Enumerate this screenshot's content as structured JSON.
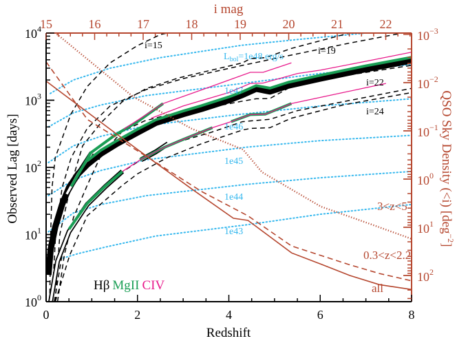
{
  "chart_data": {
    "type": "line",
    "xlabel": "Redshift",
    "ylabel": "Observed Lag [days]",
    "top_xlabel": "i mag",
    "right_ylabel": {
      "main": "QSO Sky Density (<i) [deg",
      "sup": "−2",
      "end": "]"
    },
    "xlim": [
      0,
      8
    ],
    "ylim": [
      1,
      10000
    ],
    "y_scale": "log",
    "top_xlim": [
      15,
      22.53
    ],
    "right_ylim": [
      0.001,
      350
    ],
    "right_y_scale": "log (inverted, increasing downward)",
    "grid": false,
    "x_ticks": [
      "0",
      "2",
      "4",
      "6",
      "8"
    ],
    "top_x_ticks": [
      "15",
      "16",
      "17",
      "18",
      "19",
      "20",
      "21",
      "22"
    ],
    "y_ticks": [
      {
        "base": "10",
        "exp": "0"
      },
      {
        "base": "10",
        "exp": "1"
      },
      {
        "base": "10",
        "exp": "2"
      },
      {
        "base": "10",
        "exp": "3"
      },
      {
        "base": "10",
        "exp": "4"
      }
    ],
    "right_y_ticks": [
      {
        "base": "10",
        "exp": "−3"
      },
      {
        "base": "10",
        "exp": "−2"
      },
      {
        "base": "10",
        "exp": "−1"
      },
      {
        "base": "10",
        "exp": "0"
      },
      {
        "base": "10",
        "exp": "1"
      },
      {
        "base": "10",
        "exp": "2"
      }
    ],
    "colors": {
      "black": "#000000",
      "mgii": "#1a9e55",
      "civ": "#e8198b",
      "lbol": "#35b8ee",
      "density": "#b5462e"
    },
    "legend": [
      {
        "label": "Hβ",
        "color": "#000000"
      },
      {
        "label": "MgII",
        "color": "#1a9e55"
      },
      {
        "label": "CIV",
        "color": "#e8198b"
      }
    ],
    "lbol_label": {
      "prefix": "L",
      "sub": "bol",
      "eq": "=",
      "suffix": " erg/s"
    },
    "lbol_lines": [
      {
        "name": "1e48",
        "points": [
          [
            0.09,
            1260
          ],
          [
            0.6,
            2000
          ],
          [
            1.4,
            3000
          ],
          [
            2.5,
            4300
          ],
          [
            4.3,
            6600
          ],
          [
            5.5,
            8000
          ],
          [
            7.0,
            10000
          ],
          [
            8.0,
            11500
          ]
        ]
      },
      {
        "name": "1e47",
        "points": [
          [
            0.05,
            400
          ],
          [
            0.6,
            650
          ],
          [
            1.2,
            850
          ],
          [
            2.18,
            1170
          ],
          [
            4.3,
            1780
          ],
          [
            6,
            2500
          ],
          [
            8,
            3400
          ]
        ]
      },
      {
        "name": "1e46",
        "points": [
          [
            0.05,
            118
          ],
          [
            0.6,
            210
          ],
          [
            1.2,
            290
          ],
          [
            2.2,
            420
          ],
          [
            4.1,
            600
          ],
          [
            6,
            820
          ],
          [
            8,
            1050
          ]
        ]
      },
      {
        "name": "1e45",
        "points": [
          [
            0.05,
            38
          ],
          [
            0.6,
            65
          ],
          [
            1.2,
            90
          ],
          [
            2.2,
            130
          ],
          [
            4.4,
            200
          ],
          [
            6,
            250
          ],
          [
            8,
            300
          ]
        ]
      },
      {
        "name": "1e44",
        "points": [
          [
            0.05,
            11
          ],
          [
            0.6,
            21
          ],
          [
            1.2,
            28
          ],
          [
            2.2,
            38
          ],
          [
            4.4,
            56
          ],
          [
            6,
            70
          ],
          [
            8,
            87
          ]
        ]
      },
      {
        "name": "1e43",
        "points": [
          [
            0.3,
            4.3
          ],
          [
            0.7,
            5.2
          ],
          [
            1.3,
            6.5
          ],
          [
            2.4,
            9.5
          ],
          [
            4.4,
            14
          ],
          [
            6,
            20
          ],
          [
            8,
            28
          ]
        ]
      }
    ],
    "imag_curves": [
      {
        "name": "i=15",
        "points": [
          [
            0.08,
            1
          ],
          [
            0.1,
            10
          ],
          [
            0.13,
            50
          ],
          [
            0.2,
            140
          ],
          [
            0.54,
            615
          ],
          [
            0.9,
            1600
          ],
          [
            1.4,
            3600
          ],
          [
            2.0,
            6500
          ],
          [
            2.5,
            9500
          ],
          [
            2.65,
            10000
          ]
        ]
      },
      {
        "name": "",
        "points": [
          [
            0.13,
            1
          ],
          [
            0.2,
            8
          ],
          [
            0.35,
            50
          ],
          [
            0.55,
            140
          ],
          [
            0.9,
            380
          ],
          [
            1.4,
            820
          ],
          [
            2.2,
            1450
          ],
          [
            3,
            2100
          ],
          [
            4.3,
            3300
          ],
          [
            5.3,
            4600
          ],
          [
            6.6,
            7000
          ],
          [
            7.8,
            10000
          ]
        ]
      },
      {
        "name": "i=19",
        "points": [
          [
            0.2,
            1
          ],
          [
            0.3,
            10
          ],
          [
            0.54,
            54
          ],
          [
            0.8,
            210
          ],
          [
            1.2,
            460
          ],
          [
            1.66,
            940
          ],
          [
            2.2,
            1500
          ],
          [
            2.9,
            2150
          ],
          [
            3.66,
            2850
          ],
          [
            4.3,
            3600
          ],
          [
            4.47,
            4150
          ],
          [
            4.8,
            4300
          ],
          [
            5.37,
            5900
          ],
          [
            6.64,
            10000
          ]
        ]
      },
      {
        "name": "i=22",
        "points": [
          [
            0.25,
            1
          ],
          [
            0.4,
            5
          ],
          [
            0.6,
            18
          ],
          [
            0.9,
            54
          ],
          [
            1.2,
            150
          ],
          [
            1.66,
            340
          ],
          [
            2.15,
            490
          ],
          [
            2.7,
            615
          ],
          [
            3.4,
            740
          ],
          [
            4.3,
            970
          ],
          [
            4.6,
            1050
          ],
          [
            4.9,
            1060
          ],
          [
            5.37,
            1600
          ],
          [
            6.5,
            2300
          ],
          [
            8,
            3300
          ]
        ]
      },
      {
        "name": "",
        "points": [
          [
            0.18,
            1
          ],
          [
            0.35,
            5
          ],
          [
            0.6,
            14
          ],
          [
            0.9,
            28
          ],
          [
            1.4,
            65
          ],
          [
            2.15,
            140
          ],
          [
            2.8,
            230
          ],
          [
            3.6,
            330
          ],
          [
            4.3,
            480
          ],
          [
            4.9,
            520
          ],
          [
            5.5,
            700
          ],
          [
            8,
            1500
          ]
        ]
      },
      {
        "name": "i=24",
        "points": [
          [
            0.2,
            1
          ],
          [
            0.52,
            5
          ],
          [
            0.9,
            19
          ],
          [
            1.67,
            54
          ],
          [
            2.0,
            80
          ],
          [
            2.65,
            140
          ],
          [
            3.4,
            225
          ],
          [
            4.3,
            360
          ],
          [
            4.47,
            380
          ],
          [
            4.9,
            390
          ],
          [
            5.37,
            540
          ],
          [
            6.5,
            850
          ],
          [
            8,
            1300
          ]
        ]
      }
    ],
    "lag_tracks": [
      {
        "style": "thick",
        "color": "#000000",
        "points": [
          [
            0.05,
            2.5
          ],
          [
            0.1,
            6
          ],
          [
            0.2,
            13
          ],
          [
            0.35,
            28
          ],
          [
            0.5,
            50
          ],
          [
            0.7,
            80
          ],
          [
            0.9,
            110
          ],
          [
            1.2,
            160
          ],
          [
            1.55,
            225
          ],
          [
            2,
            330
          ],
          [
            2.4,
            460
          ],
          [
            3,
            620
          ],
          [
            3.4,
            740
          ],
          [
            4,
            1000
          ],
          [
            4.3,
            1200
          ],
          [
            4.6,
            1480
          ],
          [
            4.9,
            1350
          ],
          [
            5.3,
            1650
          ],
          [
            6,
            2100
          ],
          [
            7,
            2900
          ],
          [
            8,
            3900
          ]
        ]
      },
      {
        "style": "outline",
        "color": "#000000",
        "points": [
          [
            0.45,
            40
          ],
          [
            0.7,
            80
          ],
          [
            1.0,
            165
          ]
        ]
      },
      {
        "style": "green",
        "color": "#1a9e55",
        "points": [
          [
            0.55,
            52
          ],
          [
            0.98,
            165
          ],
          [
            1.5,
            300
          ],
          [
            2,
            480
          ],
          [
            2.56,
            890
          ]
        ]
      },
      {
        "style": "magenta",
        "color": "#e8198b",
        "points": [
          [
            1.7,
            370
          ],
          [
            2.56,
            890
          ],
          [
            3.5,
            1500
          ],
          [
            4.47,
            2600
          ],
          [
            4.75,
            2600
          ],
          [
            5.37,
            3600
          ]
        ]
      },
      {
        "style": "green",
        "color": "#1a9e55",
        "points": [
          [
            0.9,
            125
          ],
          [
            1.2,
            180
          ],
          [
            1.55,
            250
          ],
          [
            2,
            370
          ],
          [
            2.4,
            510
          ],
          [
            3,
            690
          ],
          [
            3.4,
            830
          ],
          [
            4,
            1120
          ],
          [
            4.3,
            1340
          ],
          [
            4.6,
            1650
          ],
          [
            4.9,
            1510
          ],
          [
            5.3,
            1850
          ],
          [
            6,
            2350
          ],
          [
            7,
            3250
          ],
          [
            8,
            4350
          ]
        ]
      },
      {
        "style": "magenta",
        "color": "#e8198b",
        "points": [
          [
            2.3,
            540
          ],
          [
            3,
            820
          ],
          [
            4,
            1300
          ],
          [
            4.47,
            1780
          ],
          [
            4.75,
            1800
          ],
          [
            5.5,
            2500
          ],
          [
            6,
            2800
          ],
          [
            7,
            3800
          ],
          [
            8,
            5200
          ]
        ]
      },
      {
        "style": "outline",
        "color": "#000000",
        "points": [
          [
            0.1,
            1
          ],
          [
            0.25,
            4
          ],
          [
            0.5,
            11
          ],
          [
            0.9,
            28
          ],
          [
            1.3,
            52
          ],
          [
            1.67,
            87
          ]
        ]
      },
      {
        "style": "green",
        "color": "#1a9e55",
        "points": [
          [
            0.5,
            12
          ],
          [
            0.9,
            29
          ],
          [
            1.3,
            53
          ],
          [
            1.67,
            87
          ]
        ]
      },
      {
        "style": "outline",
        "color": "#000000",
        "points": [
          [
            2.08,
            130
          ],
          [
            2.4,
            170
          ],
          [
            2.67,
            225
          ]
        ]
      },
      {
        "style": "green",
        "color": "#1a9e55",
        "points": [
          [
            2.05,
            130
          ],
          [
            2.6,
            200
          ],
          [
            3.0,
            260
          ],
          [
            3.64,
            390
          ]
        ]
      },
      {
        "style": "green",
        "color": "#1a9e55",
        "points": [
          [
            4.05,
            480
          ],
          [
            4.47,
            610
          ],
          [
            4.8,
            620
          ],
          [
            5.37,
            890
          ]
        ]
      },
      {
        "style": "magenta",
        "color": "#e8198b",
        "points": [
          [
            1.67,
            87
          ],
          [
            2.1,
            135
          ],
          [
            2.6,
            200
          ],
          [
            3,
            260
          ],
          [
            3.64,
            390
          ],
          [
            4.05,
            480
          ],
          [
            4.47,
            610
          ],
          [
            4.8,
            620
          ],
          [
            5.37,
            890
          ],
          [
            6.5,
            1300
          ],
          [
            7.44,
            1780
          ]
        ]
      }
    ],
    "density_curves": [
      {
        "name": "all",
        "dash": "solid",
        "points": [
          [
            15,
            0.0093
          ],
          [
            16.42,
            0.11
          ],
          [
            17.13,
            0.37
          ],
          [
            18.0,
            1.6
          ],
          [
            18.86,
            6.5
          ],
          [
            19.16,
            7.2
          ],
          [
            20.06,
            34
          ],
          [
            20.66,
            58
          ],
          [
            21.26,
            100
          ],
          [
            21.87,
            155
          ],
          [
            22.53,
            195
          ]
        ]
      },
      {
        "name": "0.3<z<2.2",
        "dash": "dashed",
        "points": [
          [
            15,
            0.0037
          ],
          [
            15.85,
            0.058
          ],
          [
            17.07,
            0.34
          ],
          [
            18.2,
            1.8
          ],
          [
            19.16,
            5.8
          ],
          [
            20.06,
            24.5
          ],
          [
            21.26,
            60
          ],
          [
            21.87,
            91
          ],
          [
            22.53,
            129
          ]
        ]
      },
      {
        "name": "3<z<5",
        "dash": "dotted",
        "points": [
          [
            15.18,
            0.00091
          ],
          [
            16.79,
            0.0195
          ],
          [
            18.0,
            0.09
          ],
          [
            19.06,
            0.245
          ],
          [
            19.45,
            0.72
          ],
          [
            20.66,
            3.7
          ],
          [
            21.6,
            8
          ],
          [
            22.53,
            17.4
          ]
        ]
      }
    ]
  }
}
